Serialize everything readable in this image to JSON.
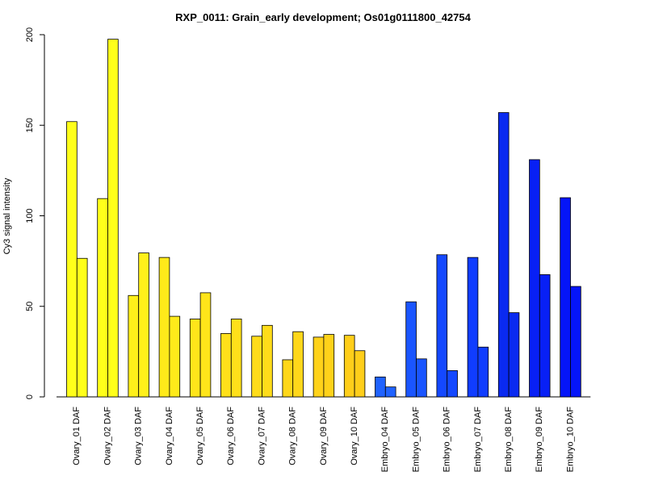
{
  "chart_data": {
    "type": "bar",
    "title": "RXP_0011: Grain_early development; Os01g0111800_42754",
    "xlabel": "",
    "ylabel": "Cy3 signal intensity",
    "ylim": [
      0,
      200
    ],
    "yticks": [
      0,
      50,
      100,
      150,
      200
    ],
    "grid": false,
    "legend": "none",
    "categories": [
      "Ovary_01 DAF",
      "Ovary_02 DAF",
      "Ovary_03 DAF",
      "Ovary_04 DAF",
      "Ovary_05 DAF",
      "Ovary_06 DAF",
      "Ovary_07 DAF",
      "Ovary_08 DAF",
      "Ovary_09 DAF",
      "Ovary_10 DAF",
      "Embryo_04 DAF",
      "Embryo_05 DAF",
      "Embryo_06 DAF",
      "Embryo_07 DAF",
      "Embryo_08 DAF",
      "Embryo_09 DAF",
      "Embryo_10 DAF"
    ],
    "colors": [
      "#ffff1a",
      "#ffff1a",
      "#fff01a",
      "#ffea1a",
      "#ffe51a",
      "#ffe01a",
      "#ffdc1a",
      "#ffd71a",
      "#ffd21a",
      "#ffce1a",
      "#1f62ff",
      "#1a55ff",
      "#1448ff",
      "#103dff",
      "#0a2af0",
      "#0820f5",
      "#0515f8"
    ],
    "series": [
      {
        "values": [
          152,
          109.5,
          56,
          77,
          43,
          35,
          33.5,
          20.5,
          33,
          34,
          11,
          52.5,
          78.5,
          77,
          157,
          131,
          110
        ]
      },
      {
        "values": [
          76.5,
          197.5,
          79.5,
          44.5,
          57.5,
          43,
          39.5,
          36,
          34.5,
          25.5,
          5.5,
          21,
          14.5,
          27.5,
          46.5,
          67.5,
          61
        ]
      }
    ]
  }
}
